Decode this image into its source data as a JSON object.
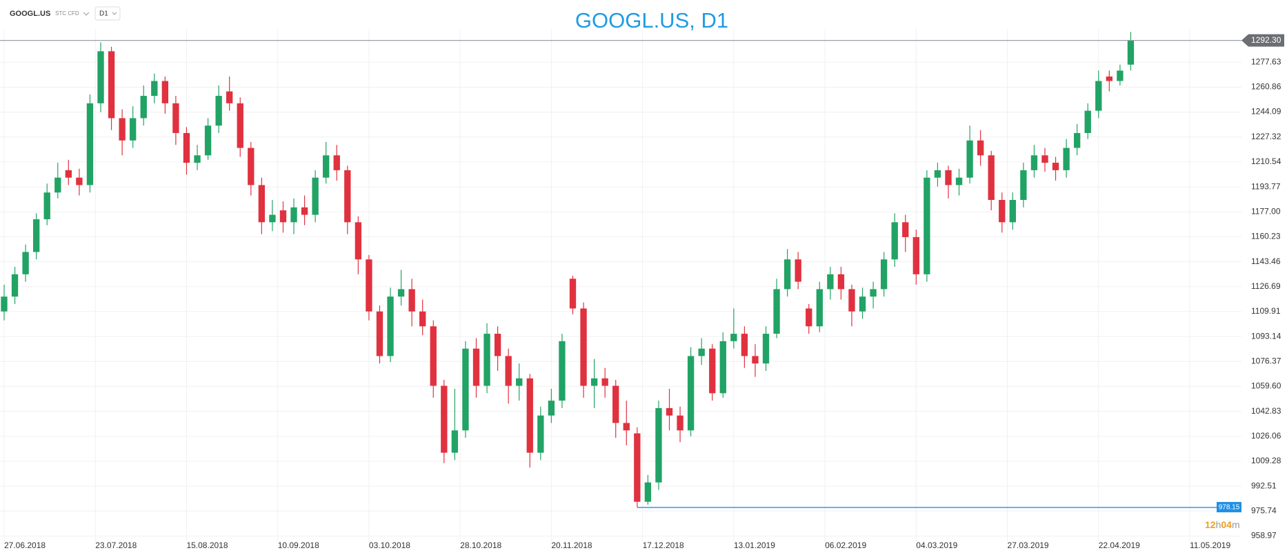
{
  "toolbar": {
    "symbol": "GOOGL.US",
    "instrument": "STC CFD",
    "timeframe": "D1"
  },
  "chart_data": {
    "type": "candlestick",
    "title": "GOOGL.US, D1",
    "up_color": "#21a365",
    "down_color": "#e0313f",
    "grid": true,
    "ohlc": [
      [
        1110,
        1128,
        1104,
        1120
      ],
      [
        1120,
        1140,
        1115,
        1135
      ],
      [
        1135,
        1155,
        1130,
        1150
      ],
      [
        1150,
        1176,
        1145,
        1172
      ],
      [
        1172,
        1196,
        1168,
        1190
      ],
      [
        1190,
        1210,
        1186,
        1200
      ],
      [
        1205,
        1212,
        1195,
        1200
      ],
      [
        1200,
        1206,
        1188,
        1195
      ],
      [
        1195,
        1256,
        1190,
        1250
      ],
      [
        1250,
        1291,
        1244,
        1285
      ],
      [
        1285,
        1288,
        1232,
        1240
      ],
      [
        1240,
        1246,
        1215,
        1225
      ],
      [
        1225,
        1248,
        1220,
        1240
      ],
      [
        1240,
        1262,
        1235,
        1255
      ],
      [
        1255,
        1270,
        1250,
        1265
      ],
      [
        1265,
        1268,
        1243,
        1250
      ],
      [
        1250,
        1255,
        1222,
        1230
      ],
      [
        1230,
        1234,
        1202,
        1210
      ],
      [
        1210,
        1222,
        1205,
        1215
      ],
      [
        1215,
        1240,
        1212,
        1235
      ],
      [
        1235,
        1262,
        1230,
        1255
      ],
      [
        1258,
        1268,
        1245,
        1250
      ],
      [
        1250,
        1254,
        1214,
        1220
      ],
      [
        1220,
        1224,
        1188,
        1195
      ],
      [
        1195,
        1200,
        1162,
        1170
      ],
      [
        1170,
        1185,
        1164,
        1175
      ],
      [
        1178,
        1184,
        1163,
        1170
      ],
      [
        1170,
        1186,
        1162,
        1180
      ],
      [
        1180,
        1188,
        1168,
        1175
      ],
      [
        1175,
        1205,
        1170,
        1200
      ],
      [
        1200,
        1224,
        1196,
        1215
      ],
      [
        1215,
        1222,
        1198,
        1205
      ],
      [
        1205,
        1208,
        1162,
        1170
      ],
      [
        1170,
        1174,
        1135,
        1145
      ],
      [
        1145,
        1148,
        1104,
        1110
      ],
      [
        1110,
        1114,
        1075,
        1080
      ],
      [
        1080,
        1126,
        1076,
        1120
      ],
      [
        1120,
        1138,
        1114,
        1125
      ],
      [
        1125,
        1132,
        1100,
        1110
      ],
      [
        1110,
        1118,
        1094,
        1100
      ],
      [
        1100,
        1104,
        1052,
        1060
      ],
      [
        1060,
        1064,
        1008,
        1015
      ],
      [
        1015,
        1058,
        1010,
        1030
      ],
      [
        1030,
        1090,
        1025,
        1085
      ],
      [
        1085,
        1092,
        1052,
        1060
      ],
      [
        1060,
        1102,
        1055,
        1095
      ],
      [
        1095,
        1100,
        1070,
        1080
      ],
      [
        1080,
        1085,
        1048,
        1060
      ],
      [
        1060,
        1075,
        1050,
        1065
      ],
      [
        1065,
        1068,
        1005,
        1015
      ],
      [
        1015,
        1046,
        1010,
        1040
      ],
      [
        1040,
        1058,
        1035,
        1050
      ],
      [
        1050,
        1095,
        1045,
        1090
      ],
      [
        1132,
        1134,
        1108,
        1112
      ],
      [
        1112,
        1116,
        1052,
        1060
      ],
      [
        1060,
        1078,
        1045,
        1065
      ],
      [
        1065,
        1072,
        1052,
        1060
      ],
      [
        1060,
        1064,
        1025,
        1035
      ],
      [
        1035,
        1050,
        1020,
        1030
      ],
      [
        1028,
        1032,
        978.15,
        982
      ],
      [
        982,
        1000,
        980,
        995
      ],
      [
        995,
        1050,
        990,
        1045
      ],
      [
        1045,
        1058,
        1030,
        1040
      ],
      [
        1040,
        1046,
        1022,
        1030
      ],
      [
        1030,
        1086,
        1026,
        1080
      ],
      [
        1080,
        1092,
        1074,
        1085
      ],
      [
        1085,
        1088,
        1050,
        1055
      ],
      [
        1055,
        1096,
        1052,
        1090
      ],
      [
        1090,
        1112,
        1085,
        1095
      ],
      [
        1095,
        1100,
        1072,
        1080
      ],
      [
        1080,
        1088,
        1066,
        1075
      ],
      [
        1075,
        1100,
        1070,
        1095
      ],
      [
        1095,
        1132,
        1092,
        1125
      ],
      [
        1125,
        1152,
        1120,
        1145
      ],
      [
        1145,
        1150,
        1125,
        1130
      ],
      [
        1112,
        1115,
        1095,
        1100
      ],
      [
        1100,
        1130,
        1096,
        1125
      ],
      [
        1125,
        1140,
        1118,
        1135
      ],
      [
        1135,
        1140,
        1118,
        1125
      ],
      [
        1125,
        1128,
        1100,
        1110
      ],
      [
        1110,
        1126,
        1105,
        1120
      ],
      [
        1120,
        1130,
        1112,
        1125
      ],
      [
        1125,
        1150,
        1120,
        1145
      ],
      [
        1145,
        1176,
        1140,
        1170
      ],
      [
        1170,
        1175,
        1150,
        1160
      ],
      [
        1160,
        1165,
        1128,
        1135
      ],
      [
        1135,
        1205,
        1130,
        1200
      ],
      [
        1200,
        1210,
        1194,
        1205
      ],
      [
        1205,
        1208,
        1186,
        1195
      ],
      [
        1195,
        1206,
        1188,
        1200
      ],
      [
        1200,
        1235,
        1196,
        1225
      ],
      [
        1225,
        1232,
        1208,
        1215
      ],
      [
        1215,
        1218,
        1178,
        1185
      ],
      [
        1185,
        1190,
        1163,
        1170
      ],
      [
        1170,
        1190,
        1165,
        1185
      ],
      [
        1185,
        1210,
        1180,
        1205
      ],
      [
        1205,
        1222,
        1200,
        1215
      ],
      [
        1215,
        1220,
        1204,
        1210
      ],
      [
        1210,
        1214,
        1198,
        1205
      ],
      [
        1205,
        1226,
        1200,
        1220
      ],
      [
        1220,
        1236,
        1215,
        1230
      ],
      [
        1230,
        1250,
        1226,
        1245
      ],
      [
        1245,
        1272,
        1240,
        1265
      ],
      [
        1268,
        1272,
        1258,
        1265
      ],
      [
        1265,
        1276,
        1262,
        1272
      ],
      [
        1276,
        1298,
        1272,
        1292.3
      ]
    ],
    "xlim": [
      0,
      115
    ],
    "xticks": [
      {
        "value": 0,
        "label": "27.06.2018"
      },
      {
        "value": 8.5,
        "label": "23.07.2018"
      },
      {
        "value": 17,
        "label": "15.08.2018"
      },
      {
        "value": 25.5,
        "label": "10.09.2018"
      },
      {
        "value": 34,
        "label": "03.10.2018"
      },
      {
        "value": 42.5,
        "label": "28.10.2018"
      },
      {
        "value": 51,
        "label": "20.11.2018"
      },
      {
        "value": 59.5,
        "label": "17.12.2018"
      },
      {
        "value": 68,
        "label": "13.01.2019"
      },
      {
        "value": 76.5,
        "label": "06.02.2019"
      },
      {
        "value": 85,
        "label": "04.03.2019"
      },
      {
        "value": 93.5,
        "label": "27.03.2019"
      },
      {
        "value": 102,
        "label": "22.04.2019"
      },
      {
        "value": 110.5,
        "label": "11.05.2019"
      }
    ],
    "ylim": [
      955,
      1300
    ],
    "yticks": [
      958.97,
      975.74,
      992.51,
      1009.28,
      1026.06,
      1042.83,
      {
        "value": 1059.6,
        "label": "1059.60"
      },
      1076.37,
      1093.14,
      1109.91,
      1126.69,
      1143.46,
      1160.23,
      {
        "value": 1177,
        "label": "1177.00"
      },
      1193.77,
      1210.54,
      1227.32,
      1244.09,
      1260.86,
      1277.63
    ],
    "last_price": {
      "value": 1292.3,
      "label": "1292.30"
    },
    "period_low": {
      "value": 978.15,
      "label": "978.15",
      "candle": 59
    },
    "timer": {
      "hours": "12",
      "hours_unit": "h",
      "minutes": "04",
      "minutes_unit": "m"
    }
  }
}
